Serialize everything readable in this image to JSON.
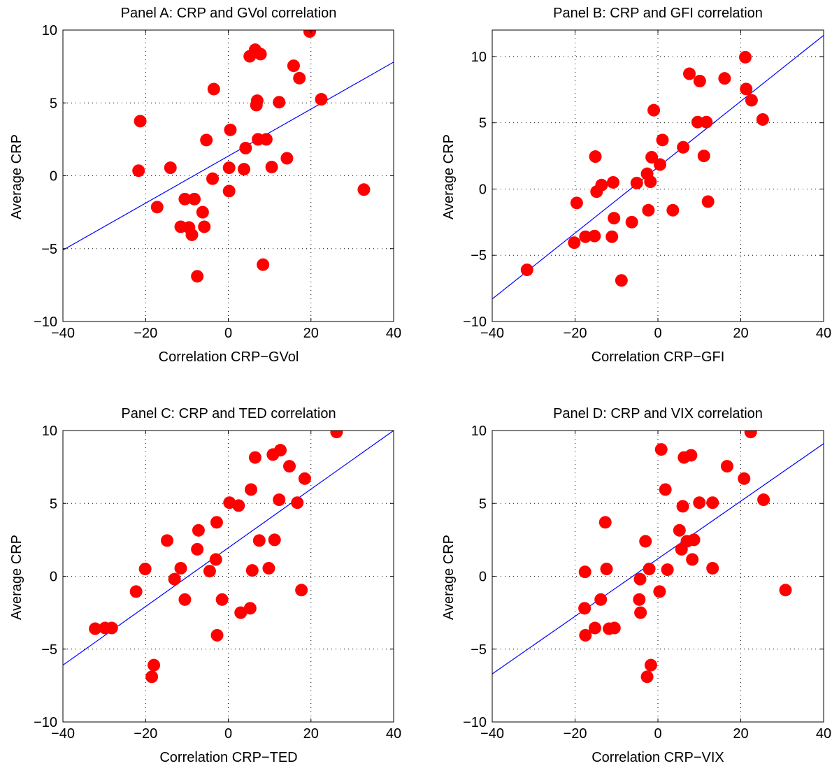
{
  "chart_data": [
    {
      "type": "scatter",
      "title": "Panel A: CRP and GVol correlation",
      "xlabel": "Correlation CRP−GVol",
      "ylabel": "Average CRP",
      "xlim": [
        -40,
        40
      ],
      "ylim": [
        -10,
        10
      ],
      "xticks": [
        -40,
        -20,
        0,
        20,
        40
      ],
      "yticks": [
        -10,
        -5,
        0,
        5,
        10
      ],
      "xtick_labels": [
        "−40",
        "−20",
        "0",
        "20",
        "40"
      ],
      "ytick_labels": [
        "−10",
        "−5",
        "0",
        "5",
        "10"
      ],
      "grid": true,
      "marker_color": "#ff0000",
      "line_color": "#0000ff",
      "fit_line": {
        "x": [
          -40,
          40
        ],
        "y": [
          -5.1,
          7.8
        ]
      },
      "points": [
        {
          "x": -21.3,
          "y": 3.75
        },
        {
          "x": -21.7,
          "y": 0.35
        },
        {
          "x": -17.2,
          "y": -2.15
        },
        {
          "x": -14,
          "y": 0.55
        },
        {
          "x": -11.5,
          "y": -3.5
        },
        {
          "x": -10.5,
          "y": -1.6
        },
        {
          "x": -9.5,
          "y": -3.55
        },
        {
          "x": -8.8,
          "y": -4.05
        },
        {
          "x": -8.2,
          "y": -1.6
        },
        {
          "x": -7.5,
          "y": -6.9
        },
        {
          "x": -6.2,
          "y": -2.5
        },
        {
          "x": -5.8,
          "y": -3.5
        },
        {
          "x": -5.3,
          "y": 2.45
        },
        {
          "x": -3.8,
          "y": -0.2
        },
        {
          "x": -3.5,
          "y": 5.95
        },
        {
          "x": 0.2,
          "y": 0.55
        },
        {
          "x": 0.2,
          "y": -1.05
        },
        {
          "x": 0.5,
          "y": 3.15
        },
        {
          "x": 3.8,
          "y": 0.45
        },
        {
          "x": 4.2,
          "y": 1.9
        },
        {
          "x": 5.2,
          "y": 8.2
        },
        {
          "x": 6.5,
          "y": 8.65
        },
        {
          "x": 6.8,
          "y": 4.85
        },
        {
          "x": 7.0,
          "y": 5.15
        },
        {
          "x": 7.2,
          "y": 2.5
        },
        {
          "x": 7.8,
          "y": 8.35
        },
        {
          "x": 8.4,
          "y": -6.1
        },
        {
          "x": 9.2,
          "y": 2.5
        },
        {
          "x": 10.5,
          "y": 0.6
        },
        {
          "x": 12.3,
          "y": 5.05
        },
        {
          "x": 14.2,
          "y": 1.2
        },
        {
          "x": 15.8,
          "y": 7.55
        },
        {
          "x": 17.2,
          "y": 6.7
        },
        {
          "x": 19.7,
          "y": 9.9
        },
        {
          "x": 22.5,
          "y": 5.25
        },
        {
          "x": 32.8,
          "y": -0.95
        }
      ]
    },
    {
      "type": "scatter",
      "title": "Panel B: CRP and GFI correlation",
      "xlabel": "Correlation CRP−GFI",
      "ylabel": "Average CRP",
      "xlim": [
        -40,
        40
      ],
      "ylim": [
        -10,
        12
      ],
      "xticks": [
        -40,
        -20,
        0,
        20,
        40
      ],
      "yticks": [
        -10,
        -5,
        0,
        5,
        10
      ],
      "xtick_labels": [
        "−40",
        "−20",
        "0",
        "20",
        "40"
      ],
      "ytick_labels": [
        "−10",
        "−5",
        "0",
        "5",
        "10"
      ],
      "grid": true,
      "marker_color": "#ff0000",
      "line_color": "#0000ff",
      "fit_line": {
        "x": [
          -40,
          40
        ],
        "y": [
          -8.3,
          11.6
        ]
      },
      "points": [
        {
          "x": -31.6,
          "y": -6.1
        },
        {
          "x": -20.2,
          "y": -4.05
        },
        {
          "x": -19.6,
          "y": -1.05
        },
        {
          "x": -17.5,
          "y": -3.6
        },
        {
          "x": -15.3,
          "y": -3.55
        },
        {
          "x": -15.1,
          "y": 2.45
        },
        {
          "x": -14.8,
          "y": -0.2
        },
        {
          "x": -13.6,
          "y": 0.3
        },
        {
          "x": -11.1,
          "y": -3.6
        },
        {
          "x": -10.8,
          "y": 0.5
        },
        {
          "x": -10.6,
          "y": -2.2
        },
        {
          "x": -8.8,
          "y": -6.9
        },
        {
          "x": -6.3,
          "y": -2.5
        },
        {
          "x": -5.1,
          "y": 0.45
        },
        {
          "x": -2.6,
          "y": 1.15
        },
        {
          "x": -2.3,
          "y": -1.6
        },
        {
          "x": -1.8,
          "y": 0.55
        },
        {
          "x": -1.5,
          "y": 2.4
        },
        {
          "x": -1.0,
          "y": 5.95
        },
        {
          "x": 0.5,
          "y": 1.85
        },
        {
          "x": 1.1,
          "y": 3.7
        },
        {
          "x": 3.6,
          "y": -1.6
        },
        {
          "x": 6.1,
          "y": 3.15
        },
        {
          "x": 7.6,
          "y": 8.7
        },
        {
          "x": 9.6,
          "y": 5.05
        },
        {
          "x": 10.1,
          "y": 8.15
        },
        {
          "x": 11.1,
          "y": 2.5
        },
        {
          "x": 11.7,
          "y": 5.05
        },
        {
          "x": 12.1,
          "y": -0.95
        },
        {
          "x": 16.1,
          "y": 8.35
        },
        {
          "x": 21.1,
          "y": 9.95
        },
        {
          "x": 21.3,
          "y": 7.55
        },
        {
          "x": 22.6,
          "y": 6.7
        },
        {
          "x": 25.3,
          "y": 5.25
        }
      ]
    },
    {
      "type": "scatter",
      "title": "Panel C: CRP and TED correlation",
      "xlabel": "Correlation CRP−TED",
      "ylabel": "Average CRP",
      "xlim": [
        -40,
        40
      ],
      "ylim": [
        -10,
        10
      ],
      "xticks": [
        -40,
        -20,
        0,
        20,
        40
      ],
      "yticks": [
        -10,
        -5,
        0,
        5,
        10
      ],
      "xtick_labels": [
        "−40",
        "−20",
        "0",
        "20",
        "40"
      ],
      "ytick_labels": [
        "−10",
        "−5",
        "0",
        "5",
        "10"
      ],
      "grid": true,
      "marker_color": "#ff0000",
      "line_color": "#0000ff",
      "fit_line": {
        "x": [
          -40,
          40
        ],
        "y": [
          -6.1,
          10.0
        ]
      },
      "points": [
        {
          "x": -32.2,
          "y": -3.6
        },
        {
          "x": -29.8,
          "y": -3.55
        },
        {
          "x": -28.2,
          "y": -3.55
        },
        {
          "x": -22.3,
          "y": -1.05
        },
        {
          "x": -20.1,
          "y": 0.5
        },
        {
          "x": -18.5,
          "y": -6.9
        },
        {
          "x": -18.0,
          "y": -6.1
        },
        {
          "x": -14.8,
          "y": 2.45
        },
        {
          "x": -13.0,
          "y": -0.2
        },
        {
          "x": -11.5,
          "y": 0.55
        },
        {
          "x": -10.5,
          "y": -1.6
        },
        {
          "x": -7.2,
          "y": 3.15
        },
        {
          "x": -7.5,
          "y": 1.85
        },
        {
          "x": -4.5,
          "y": 0.35
        },
        {
          "x": -3.0,
          "y": 1.15
        },
        {
          "x": -2.8,
          "y": 3.7
        },
        {
          "x": -2.7,
          "y": -4.05
        },
        {
          "x": -1.5,
          "y": -1.6
        },
        {
          "x": 0.3,
          "y": 5.05
        },
        {
          "x": 2.5,
          "y": 4.85
        },
        {
          "x": 3.0,
          "y": -2.5
        },
        {
          "x": 5.5,
          "y": 5.95
        },
        {
          "x": 5.3,
          "y": -2.2
        },
        {
          "x": 5.8,
          "y": 0.4
        },
        {
          "x": 6.5,
          "y": 8.15
        },
        {
          "x": 7.5,
          "y": 2.45
        },
        {
          "x": 9.8,
          "y": 0.55
        },
        {
          "x": 10.8,
          "y": 8.35
        },
        {
          "x": 11.2,
          "y": 2.5
        },
        {
          "x": 12.3,
          "y": 5.25
        },
        {
          "x": 12.6,
          "y": 8.65
        },
        {
          "x": 14.8,
          "y": 7.55
        },
        {
          "x": 16.7,
          "y": 5.05
        },
        {
          "x": 17.7,
          "y": -0.95
        },
        {
          "x": 18.5,
          "y": 6.7
        },
        {
          "x": 26.2,
          "y": 9.9
        }
      ]
    },
    {
      "type": "scatter",
      "title": "Panel D: CRP and VIX correlation",
      "xlabel": "Correlation CRP−VIX",
      "ylabel": "Average CRP",
      "xlim": [
        -40,
        40
      ],
      "ylim": [
        -10,
        10
      ],
      "xticks": [
        -40,
        -20,
        0,
        20,
        40
      ],
      "yticks": [
        -10,
        -5,
        0,
        5,
        10
      ],
      "xtick_labels": [
        "−40",
        "−20",
        "0",
        "20",
        "40"
      ],
      "ytick_labels": [
        "−10",
        "−5",
        "0",
        "5",
        "10"
      ],
      "grid": true,
      "marker_color": "#ff0000",
      "line_color": "#0000ff",
      "fit_line": {
        "x": [
          -40,
          40
        ],
        "y": [
          -6.7,
          9.1
        ]
      },
      "points": [
        {
          "x": -17.7,
          "y": -2.2
        },
        {
          "x": -17.5,
          "y": -4.05
        },
        {
          "x": -17.6,
          "y": 0.3
        },
        {
          "x": -15.2,
          "y": -3.55
        },
        {
          "x": -13.8,
          "y": -1.6
        },
        {
          "x": -12.7,
          "y": 3.7
        },
        {
          "x": -12.4,
          "y": 0.5
        },
        {
          "x": -11.8,
          "y": -3.6
        },
        {
          "x": -10.5,
          "y": -3.55
        },
        {
          "x": -4.3,
          "y": -0.2
        },
        {
          "x": -4.5,
          "y": -1.6
        },
        {
          "x": -4.2,
          "y": -2.5
        },
        {
          "x": -3.0,
          "y": 2.4
        },
        {
          "x": -2.6,
          "y": -6.9
        },
        {
          "x": -2.1,
          "y": 0.5
        },
        {
          "x": -1.7,
          "y": -6.1
        },
        {
          "x": 0.4,
          "y": -1.05
        },
        {
          "x": 0.8,
          "y": 8.7
        },
        {
          "x": 1.8,
          "y": 5.95
        },
        {
          "x": 2.3,
          "y": 0.45
        },
        {
          "x": 5.2,
          "y": 3.15
        },
        {
          "x": 5.7,
          "y": 1.85
        },
        {
          "x": 6.0,
          "y": 4.8
        },
        {
          "x": 6.3,
          "y": 8.15
        },
        {
          "x": 7.0,
          "y": 2.4
        },
        {
          "x": 8.0,
          "y": 8.3
        },
        {
          "x": 8.3,
          "y": 1.15
        },
        {
          "x": 8.7,
          "y": 2.5
        },
        {
          "x": 10.0,
          "y": 5.05
        },
        {
          "x": 13.2,
          "y": 5.05
        },
        {
          "x": 13.2,
          "y": 0.55
        },
        {
          "x": 16.7,
          "y": 7.55
        },
        {
          "x": 20.8,
          "y": 6.7
        },
        {
          "x": 22.4,
          "y": 9.9
        },
        {
          "x": 25.5,
          "y": 5.25
        },
        {
          "x": 30.8,
          "y": -0.95
        }
      ]
    }
  ]
}
